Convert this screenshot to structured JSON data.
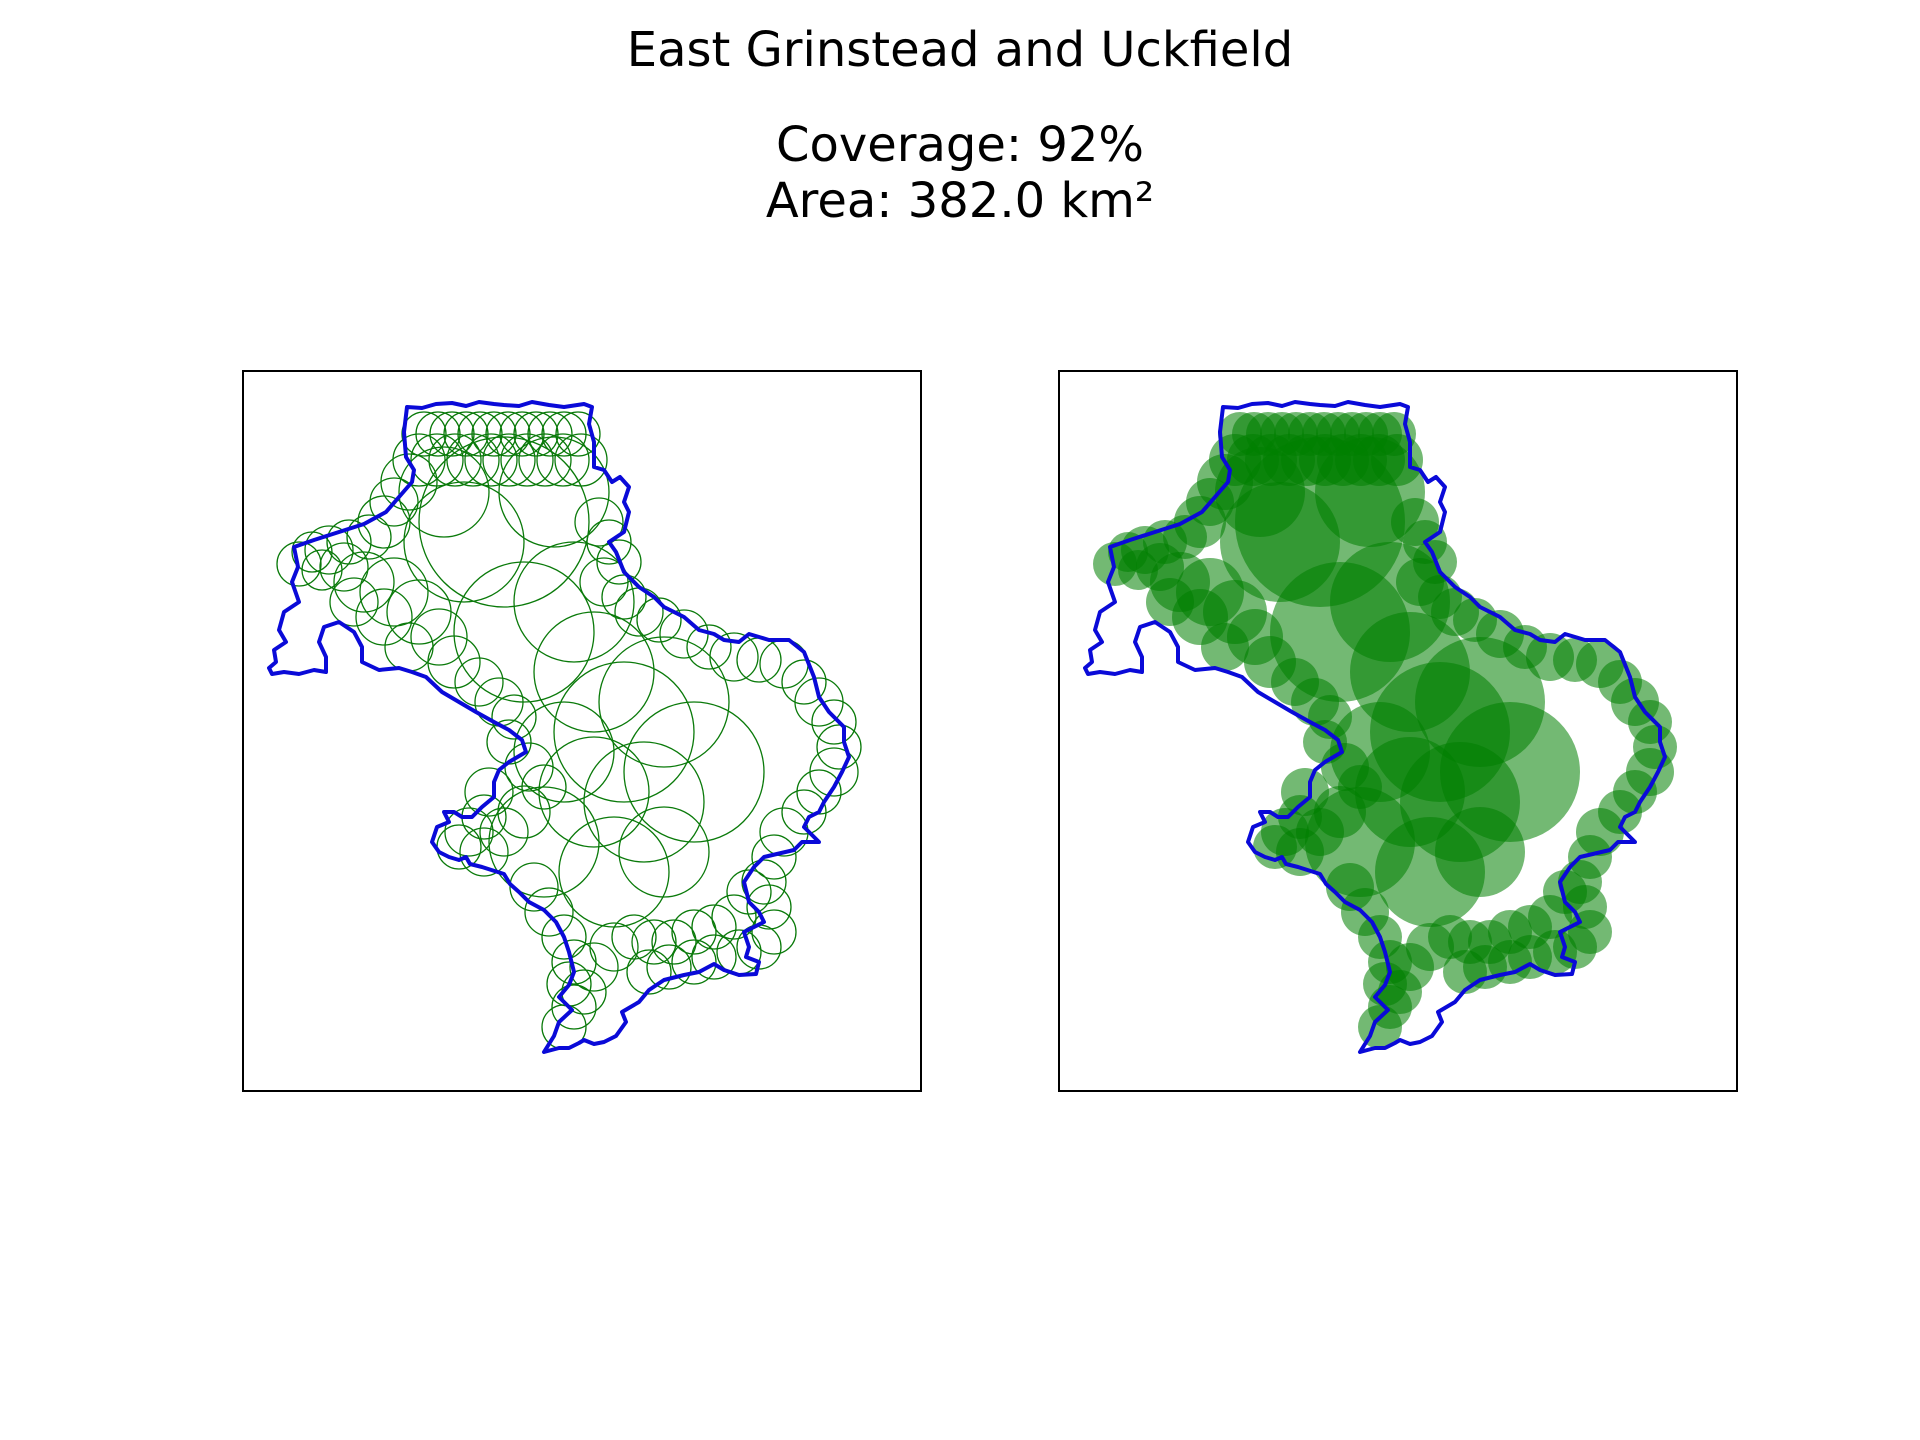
{
  "figure": {
    "title": "East Grinstead and Uckfield",
    "coverage_line": "Coverage: 92%",
    "area_line": "Area: 382.0 km²"
  },
  "colors": {
    "boundary": "#0a0ad8",
    "circles": "#0a7a0a",
    "fill": "#008000",
    "frame": "#000000"
  },
  "panels": [
    {
      "name": "circle-outline-panel",
      "style": "outline"
    },
    {
      "name": "circle-filled-panel",
      "style": "filled"
    }
  ]
}
